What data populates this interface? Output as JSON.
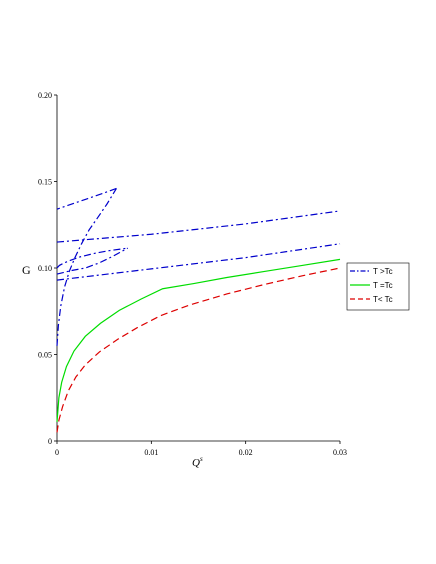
{
  "chart_data": {
    "type": "line",
    "title": "",
    "xlabel": "Q",
    "xlabel_superscript": "s",
    "ylabel": "G",
    "xlim": [
      0,
      0.03
    ],
    "ylim": [
      0,
      0.2
    ],
    "xticks": [
      "0",
      "0.01",
      "0.02",
      "0.03"
    ],
    "xtick_values": [
      0,
      0.01,
      0.02,
      0.03
    ],
    "yticks": [
      "0",
      "0.05",
      "0.10",
      "0.15",
      "0.20"
    ],
    "ytick_values": [
      0,
      0.05,
      0.1,
      0.15,
      0.2
    ],
    "grid": false,
    "legend_placement": "right",
    "series": [
      {
        "name": "T >Tc",
        "color": "#0000cc",
        "dash": "dashdot",
        "segments": [
          {
            "x": [
              0,
              0.00015,
              0.0004,
              0.0008,
              0.0013,
              0.0019,
              0.0026,
              0.0034,
              0.0043,
              0.0053,
              0.0063
            ],
            "y": [
              0.055,
              0.067,
              0.078,
              0.089,
              0.098,
              0.106,
              0.114,
              0.122,
              0.129,
              0.137,
              0.146
            ]
          },
          {
            "x": [
              0.0063,
              0.0048,
              0.0032,
              0.0016,
              0
            ],
            "y": [
              0.146,
              0.143,
              0.14,
              0.137,
              0.134
            ]
          },
          {
            "x": [
              0,
              0.01,
              0.02,
              0.03
            ],
            "y": [
              0.115,
              0.1195,
              0.1255,
              0.133
            ]
          },
          {
            "x": [
              0,
              0.0015,
              0.003,
              0.0045,
              0.006,
              0.0075
            ],
            "y": [
              0.0965,
              0.0985,
              0.1,
              0.103,
              0.107,
              0.1115
            ]
          },
          {
            "x": [
              0,
              0.00025,
              0.0006,
              0.0012,
              0.0025,
              0.004,
              0.0055,
              0.0075
            ],
            "y": [
              0.1,
              0.1015,
              0.1025,
              0.104,
              0.1065,
              0.1085,
              0.11,
              0.1115
            ]
          },
          {
            "x": [
              0,
              0.01,
              0.02,
              0.03
            ],
            "y": [
              0.093,
              0.0995,
              0.106,
              0.114
            ]
          }
        ]
      },
      {
        "name": "T =Tc",
        "color": "#00dd00",
        "dash": "solid",
        "segments": [
          {
            "x": [
              0,
              0.0002,
              0.0005,
              0.001,
              0.0018,
              0.003,
              0.0046,
              0.0066,
              0.0089,
              0.0112,
              0.0145,
              0.018,
              0.022,
              0.026,
              0.03
            ],
            "y": [
              0.011,
              0.025,
              0.034,
              0.043,
              0.052,
              0.0605,
              0.068,
              0.0755,
              0.082,
              0.088,
              0.091,
              0.0945,
              0.098,
              0.1015,
              0.105
            ]
          }
        ]
      },
      {
        "name": "T< Tc",
        "color": "#dd0000",
        "dash": "dashed",
        "segments": [
          {
            "x": [
              0,
              0.0002,
              0.0006,
              0.0012,
              0.002,
              0.003,
              0.0045,
              0.0065,
              0.0085,
              0.011,
              0.014,
              0.018,
              0.022,
              0.026,
              0.03
            ],
            "y": [
              0.005,
              0.012,
              0.02,
              0.029,
              0.037,
              0.044,
              0.0515,
              0.059,
              0.0655,
              0.0725,
              0.0785,
              0.085,
              0.0905,
              0.0955,
              0.1
            ]
          }
        ]
      }
    ]
  }
}
